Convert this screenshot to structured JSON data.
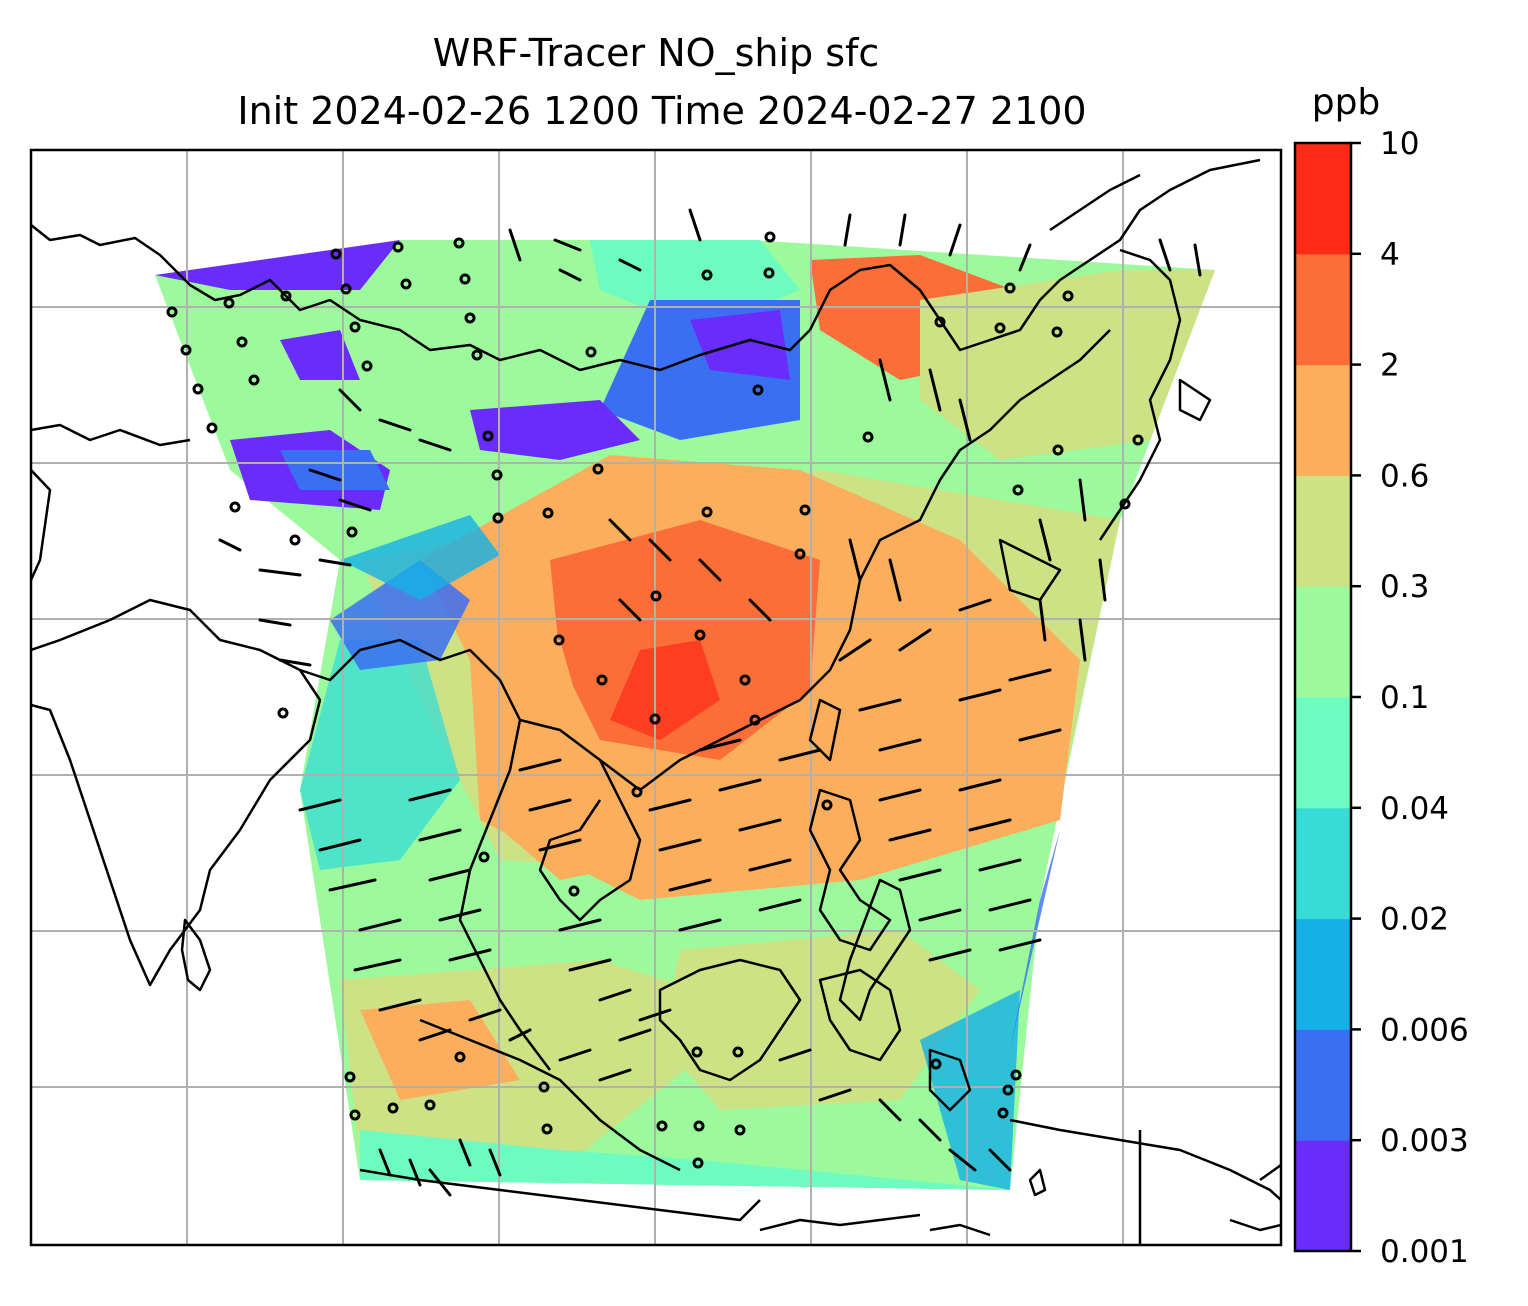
{
  "title": {
    "line1": "WRF-Tracer NO_ship sfc",
    "line2": "Init 2024-02-26 1200 Time 2024-02-27 2100"
  },
  "colorbar": {
    "unit": "ppb",
    "levels": [
      "0.001",
      "0.003",
      "0.006",
      "0.02",
      "0.04",
      "0.1",
      "0.3",
      "0.6",
      "2",
      "4",
      "10"
    ],
    "colors": [
      "#6a2cfb",
      "#3a6ff2",
      "#14b0e6",
      "#36dcd6",
      "#6dfbbf",
      "#9cfa9c",
      "#cde185",
      "#fbae5c",
      "#fb6e37",
      "#fd2a18"
    ]
  },
  "map": {
    "background": "#ffffff",
    "gridlines": true,
    "coastline_color": "#000000",
    "wind_symbols": "barbs"
  }
}
